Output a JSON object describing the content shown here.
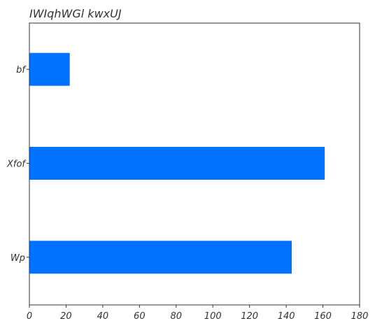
{
  "chart_data": {
    "type": "bar",
    "orientation": "horizontal",
    "title": "IWIqhWGl kwxUJ",
    "categories": [
      "bf",
      "Xfof",
      "Wp"
    ],
    "values": [
      22,
      161,
      143
    ],
    "xlabel": "",
    "ylabel": "",
    "xlim": [
      0,
      180
    ],
    "xticks": [
      0,
      20,
      40,
      60,
      80,
      100,
      120,
      140,
      160,
      180
    ],
    "grid": false,
    "legend": "none",
    "bar_color": "#0072ff"
  }
}
